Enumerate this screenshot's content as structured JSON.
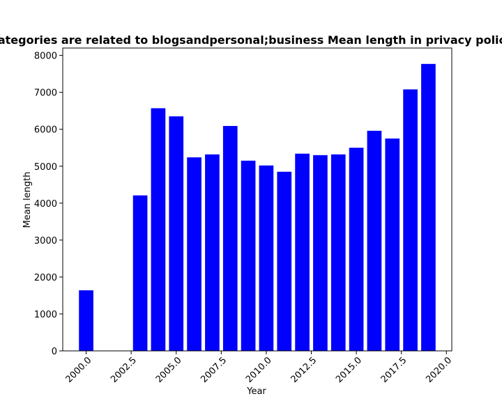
{
  "chart_data": {
    "type": "bar",
    "title": "Categories are related to blogsandpersonal;business Mean length in privacy policies",
    "xlabel": "Year",
    "ylabel": "Mean length",
    "x": [
      2000,
      2003,
      2004,
      2005,
      2006,
      2007,
      2008,
      2009,
      2010,
      2011,
      2012,
      2013,
      2014,
      2015,
      2016,
      2017,
      2018,
      2019
    ],
    "values": [
      1640,
      4210,
      6570,
      6350,
      5240,
      5320,
      6090,
      5150,
      5020,
      4850,
      5340,
      5300,
      5320,
      5500,
      5960,
      5750,
      7080,
      7770
    ],
    "xlim": [
      1998.7,
      2020.3
    ],
    "ylim": [
      0,
      8200
    ],
    "xticks": [
      2000.0,
      2002.5,
      2005.0,
      2007.5,
      2010.0,
      2012.5,
      2015.0,
      2017.5,
      2020.0
    ],
    "xtick_labels": [
      "2000.0",
      "2002.5",
      "2005.0",
      "2007.5",
      "2010.0",
      "2012.5",
      "2015.0",
      "2017.5",
      "2020.0"
    ],
    "yticks": [
      0,
      1000,
      2000,
      3000,
      4000,
      5000,
      6000,
      7000,
      8000
    ],
    "ytick_labels": [
      "0",
      "1000",
      "2000",
      "3000",
      "4000",
      "5000",
      "6000",
      "7000",
      "8000"
    ],
    "bar_width": 0.8,
    "bar_color": "#0000ff",
    "grid": false,
    "legend": "none"
  }
}
